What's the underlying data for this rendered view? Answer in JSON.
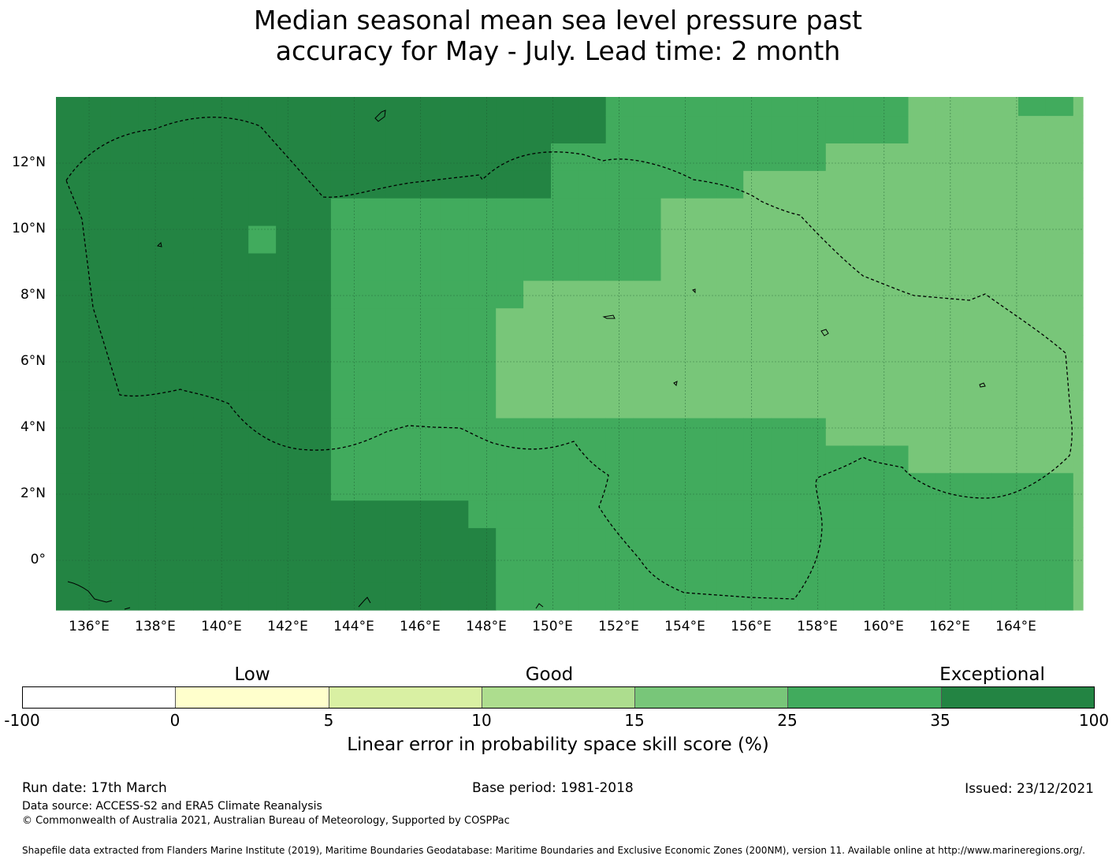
{
  "title": {
    "line1": "Median seasonal mean sea level pressure past",
    "line2": "accuracy for May - July. Lead time: 2 month"
  },
  "map": {
    "lon_ticks": [
      "136°E",
      "138°E",
      "140°E",
      "142°E",
      "144°E",
      "146°E",
      "148°E",
      "150°E",
      "152°E",
      "154°E",
      "156°E",
      "158°E",
      "160°E",
      "162°E",
      "164°E"
    ],
    "lon_values": [
      136,
      138,
      140,
      142,
      144,
      146,
      148,
      150,
      152,
      154,
      156,
      158,
      160,
      162,
      164
    ],
    "lat_ticks": [
      "12°N",
      "10°N",
      "8°N",
      "6°N",
      "4°N",
      "2°N",
      "0°"
    ],
    "lat_values": [
      12,
      10,
      8,
      6,
      4,
      2,
      0
    ],
    "lon_range": [
      135,
      166
    ],
    "lat_range": [
      -1.5,
      14
    ],
    "category_colors": [
      "#ffffff",
      "#ffffcc",
      "#d9f0a3",
      "#addd8e",
      "#78c679",
      "#41ab5d",
      "#238443"
    ],
    "gridline_color": "#1d5a30",
    "boundary_color": "#000000"
  },
  "legend": {
    "category_labels": [
      "Low",
      "Good",
      "Exceptional"
    ],
    "colors": [
      "#ffffff",
      "#ffffcc",
      "#d9f0a3",
      "#addd8e",
      "#78c679",
      "#41ab5d",
      "#238443"
    ],
    "ticks": [
      "-100",
      "0",
      "5",
      "10",
      "15",
      "25",
      "35",
      "100"
    ],
    "title": "Linear error in probability space skill score (%)"
  },
  "footer": {
    "run_date": "Run date: 17th March",
    "base_period": "Base period: 1981-2018",
    "issued": "Issued: 23/12/2021",
    "data_source": "Data source: ACCESS-S2 and ERA5 Climate Reanalysis",
    "copyright": "© Commonwealth of Australia 2021, Australian Bureau of Meteorology, Supported by COSPPac",
    "shapefile": "Shapefile data extracted from Flanders Marine Institute (2019), Maritime Boundaries Geodatabase: Maritime Boundaries and Exclusive Economic Zones (200NM), version 11. Available online at http://www.marineregions.org/."
  }
}
